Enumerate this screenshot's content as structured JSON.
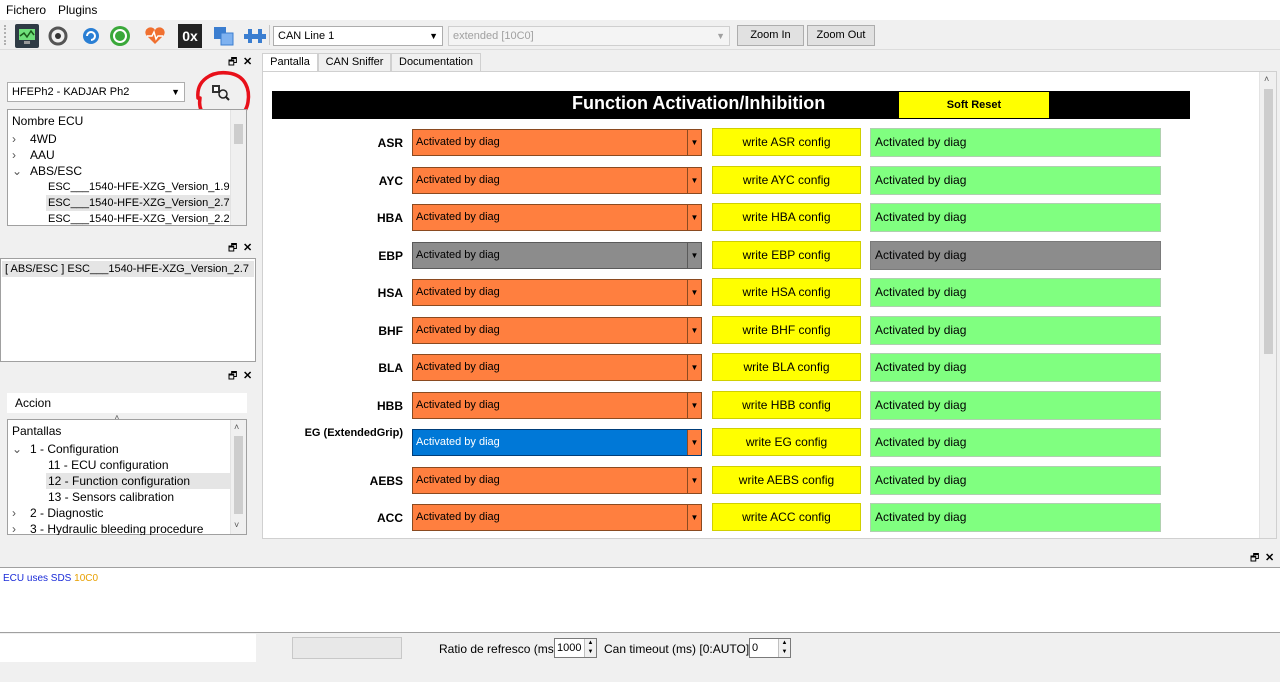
{
  "menu": {
    "items": [
      "Fichero",
      "Plugins"
    ]
  },
  "toolbar": {
    "can_line": "CAN Line 1",
    "frame_mode": "extended [10C0]",
    "zoom_in": "Zoom In",
    "zoom_out": "Zoom Out",
    "hex_label": "0x"
  },
  "ecu_panel": {
    "vehicle_select": "HFEPh2 - KADJAR Ph2",
    "tree_header": "Nombre ECU",
    "items": [
      {
        "label": "4WD",
        "expander": "›"
      },
      {
        "label": "AAU",
        "expander": "›"
      },
      {
        "label": "ABS/ESC",
        "expander": "⌄"
      },
      {
        "label": "ESC___1540-HFE-XZG_Version_1.9",
        "expander": ""
      },
      {
        "label": "ESC___1540-HFE-XZG_Version_2.7",
        "expander": ""
      },
      {
        "label": "ESC___1540-HFE-XZG_Version_2.2",
        "expander": ""
      }
    ]
  },
  "selected_panel": {
    "item": "[ ABS/ESC ] ESC___1540-HFE-XZG_Version_2.7"
  },
  "action_panel": {
    "header": "Accion",
    "tree_header": "Pantallas",
    "items": [
      {
        "label": "1 - Configuration",
        "expander": "⌄"
      },
      {
        "label": "11 - ECU configuration",
        "expander": ""
      },
      {
        "label": "12 - Function configuration",
        "expander": ""
      },
      {
        "label": "13 - Sensors calibration",
        "expander": ""
      },
      {
        "label": "2 - Diagnostic",
        "expander": "›"
      },
      {
        "label": "3 - Hydraulic bleeding procedure",
        "expander": "›"
      }
    ]
  },
  "tabs": [
    "Pantalla",
    "CAN Sniffer",
    "Documentation"
  ],
  "screen": {
    "title": "Function Activation/Inhibition",
    "soft_reset": "Soft Reset",
    "rows": [
      {
        "label": "ASR",
        "select": "Activated by diag",
        "button": "write ASR config",
        "status": "Activated by diag",
        "state": "normal"
      },
      {
        "label": "AYC",
        "select": "Activated by diag",
        "button": "write AYC config",
        "status": "Activated by diag",
        "state": "normal"
      },
      {
        "label": "HBA",
        "select": "Activated by diag",
        "button": "write HBA config",
        "status": "Activated by diag",
        "state": "normal"
      },
      {
        "label": "EBP",
        "select": "Activated by diag",
        "button": "write EBP config",
        "status": "Activated by diag",
        "state": "disabled"
      },
      {
        "label": "HSA",
        "select": "Activated by diag",
        "button": "write HSA config",
        "status": "Activated by diag",
        "state": "normal"
      },
      {
        "label": "BHF",
        "select": "Activated by diag",
        "button": "write BHF config",
        "status": "Activated by diag",
        "state": "normal"
      },
      {
        "label": "BLA",
        "select": "Activated by diag",
        "button": "write BLA config",
        "status": "Activated by diag",
        "state": "normal"
      },
      {
        "label": "HBB",
        "select": "Activated by diag",
        "button": "write HBB config",
        "status": "Activated by diag",
        "state": "normal"
      },
      {
        "label": "EG (ExtendedGrip)",
        "select": "Activated by diag",
        "button": "write EG config",
        "status": "Activated by diag",
        "state": "focused"
      },
      {
        "label": "AEBS",
        "select": "Activated by diag",
        "button": "write AEBS config",
        "status": "Activated by diag",
        "state": "normal"
      },
      {
        "label": "ACC",
        "select": "Activated by diag",
        "button": "write ACC config",
        "status": "Activated by diag",
        "state": "normal"
      }
    ]
  },
  "log": {
    "prefix": "ECU uses SDS ",
    "code": "10C0"
  },
  "statusbar": {
    "refresh_label": "Ratio de refresco (ms):",
    "refresh_value": "1000",
    "timeout_label": "Can timeout (ms) [0:AUTO] :",
    "timeout_value": "0"
  },
  "colors": {
    "select_orange": "#ff7f3f",
    "button_yellow": "#ffff00",
    "status_green": "#80ff80",
    "disabled_gray": "#8c8c8c",
    "focus_blue": "#0078d7",
    "annotation_red": "#e8101a"
  }
}
